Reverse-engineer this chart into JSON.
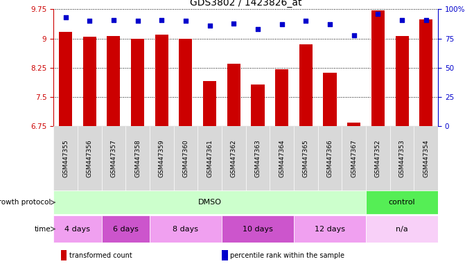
{
  "title": "GDS3802 / 1423826_at",
  "samples": [
    "GSM447355",
    "GSM447356",
    "GSM447357",
    "GSM447358",
    "GSM447359",
    "GSM447360",
    "GSM447361",
    "GSM447362",
    "GSM447363",
    "GSM447364",
    "GSM447365",
    "GSM447366",
    "GSM447367",
    "GSM447352",
    "GSM447353",
    "GSM447354"
  ],
  "bar_values": [
    9.18,
    9.04,
    9.07,
    9.0,
    9.1,
    9.0,
    7.92,
    8.35,
    7.82,
    8.22,
    8.85,
    8.12,
    6.85,
    9.72,
    9.07,
    9.5
  ],
  "percentile_values": [
    93,
    90,
    91,
    90,
    91,
    90,
    86,
    88,
    83,
    87,
    90,
    87,
    78,
    96,
    91,
    91
  ],
  "ylim_left": [
    6.75,
    9.75
  ],
  "ylim_right": [
    0,
    100
  ],
  "yticks_left": [
    6.75,
    7.5,
    8.25,
    9.0,
    9.75
  ],
  "ytick_labels_left": [
    "6.75",
    "7.5",
    "8.25",
    "9",
    "9.75"
  ],
  "yticks_right": [
    0,
    25,
    50,
    75,
    100
  ],
  "ytick_labels_right": [
    "0",
    "25",
    "50",
    "75",
    "100%"
  ],
  "bar_color": "#cc0000",
  "scatter_color": "#0000cc",
  "left_axis_color": "#cc0000",
  "right_axis_color": "#0000cc",
  "growth_protocol_label": "growth protocol",
  "time_label": "time",
  "time_groups": [
    {
      "label": "4 days",
      "start": 0,
      "end": 2,
      "color": "#f0a0f0"
    },
    {
      "label": "6 days",
      "start": 2,
      "end": 4,
      "color": "#cc55cc"
    },
    {
      "label": "8 days",
      "start": 4,
      "end": 7,
      "color": "#f0a0f0"
    },
    {
      "label": "10 days",
      "start": 7,
      "end": 10,
      "color": "#cc55cc"
    },
    {
      "label": "12 days",
      "start": 10,
      "end": 13,
      "color": "#f0a0f0"
    },
    {
      "label": "n/a",
      "start": 13,
      "end": 16,
      "color": "#f8d0f8"
    }
  ],
  "protocol_groups": [
    {
      "label": "DMSO",
      "start": 0,
      "end": 13,
      "color": "#ccffcc"
    },
    {
      "label": "control",
      "start": 13,
      "end": 16,
      "color": "#55ee55"
    }
  ],
  "legend_bar_label": "transformed count",
  "legend_scatter_label": "percentile rank within the sample",
  "xtick_bg": "#d8d8d8",
  "fig_w": 6.71,
  "fig_h": 3.84
}
